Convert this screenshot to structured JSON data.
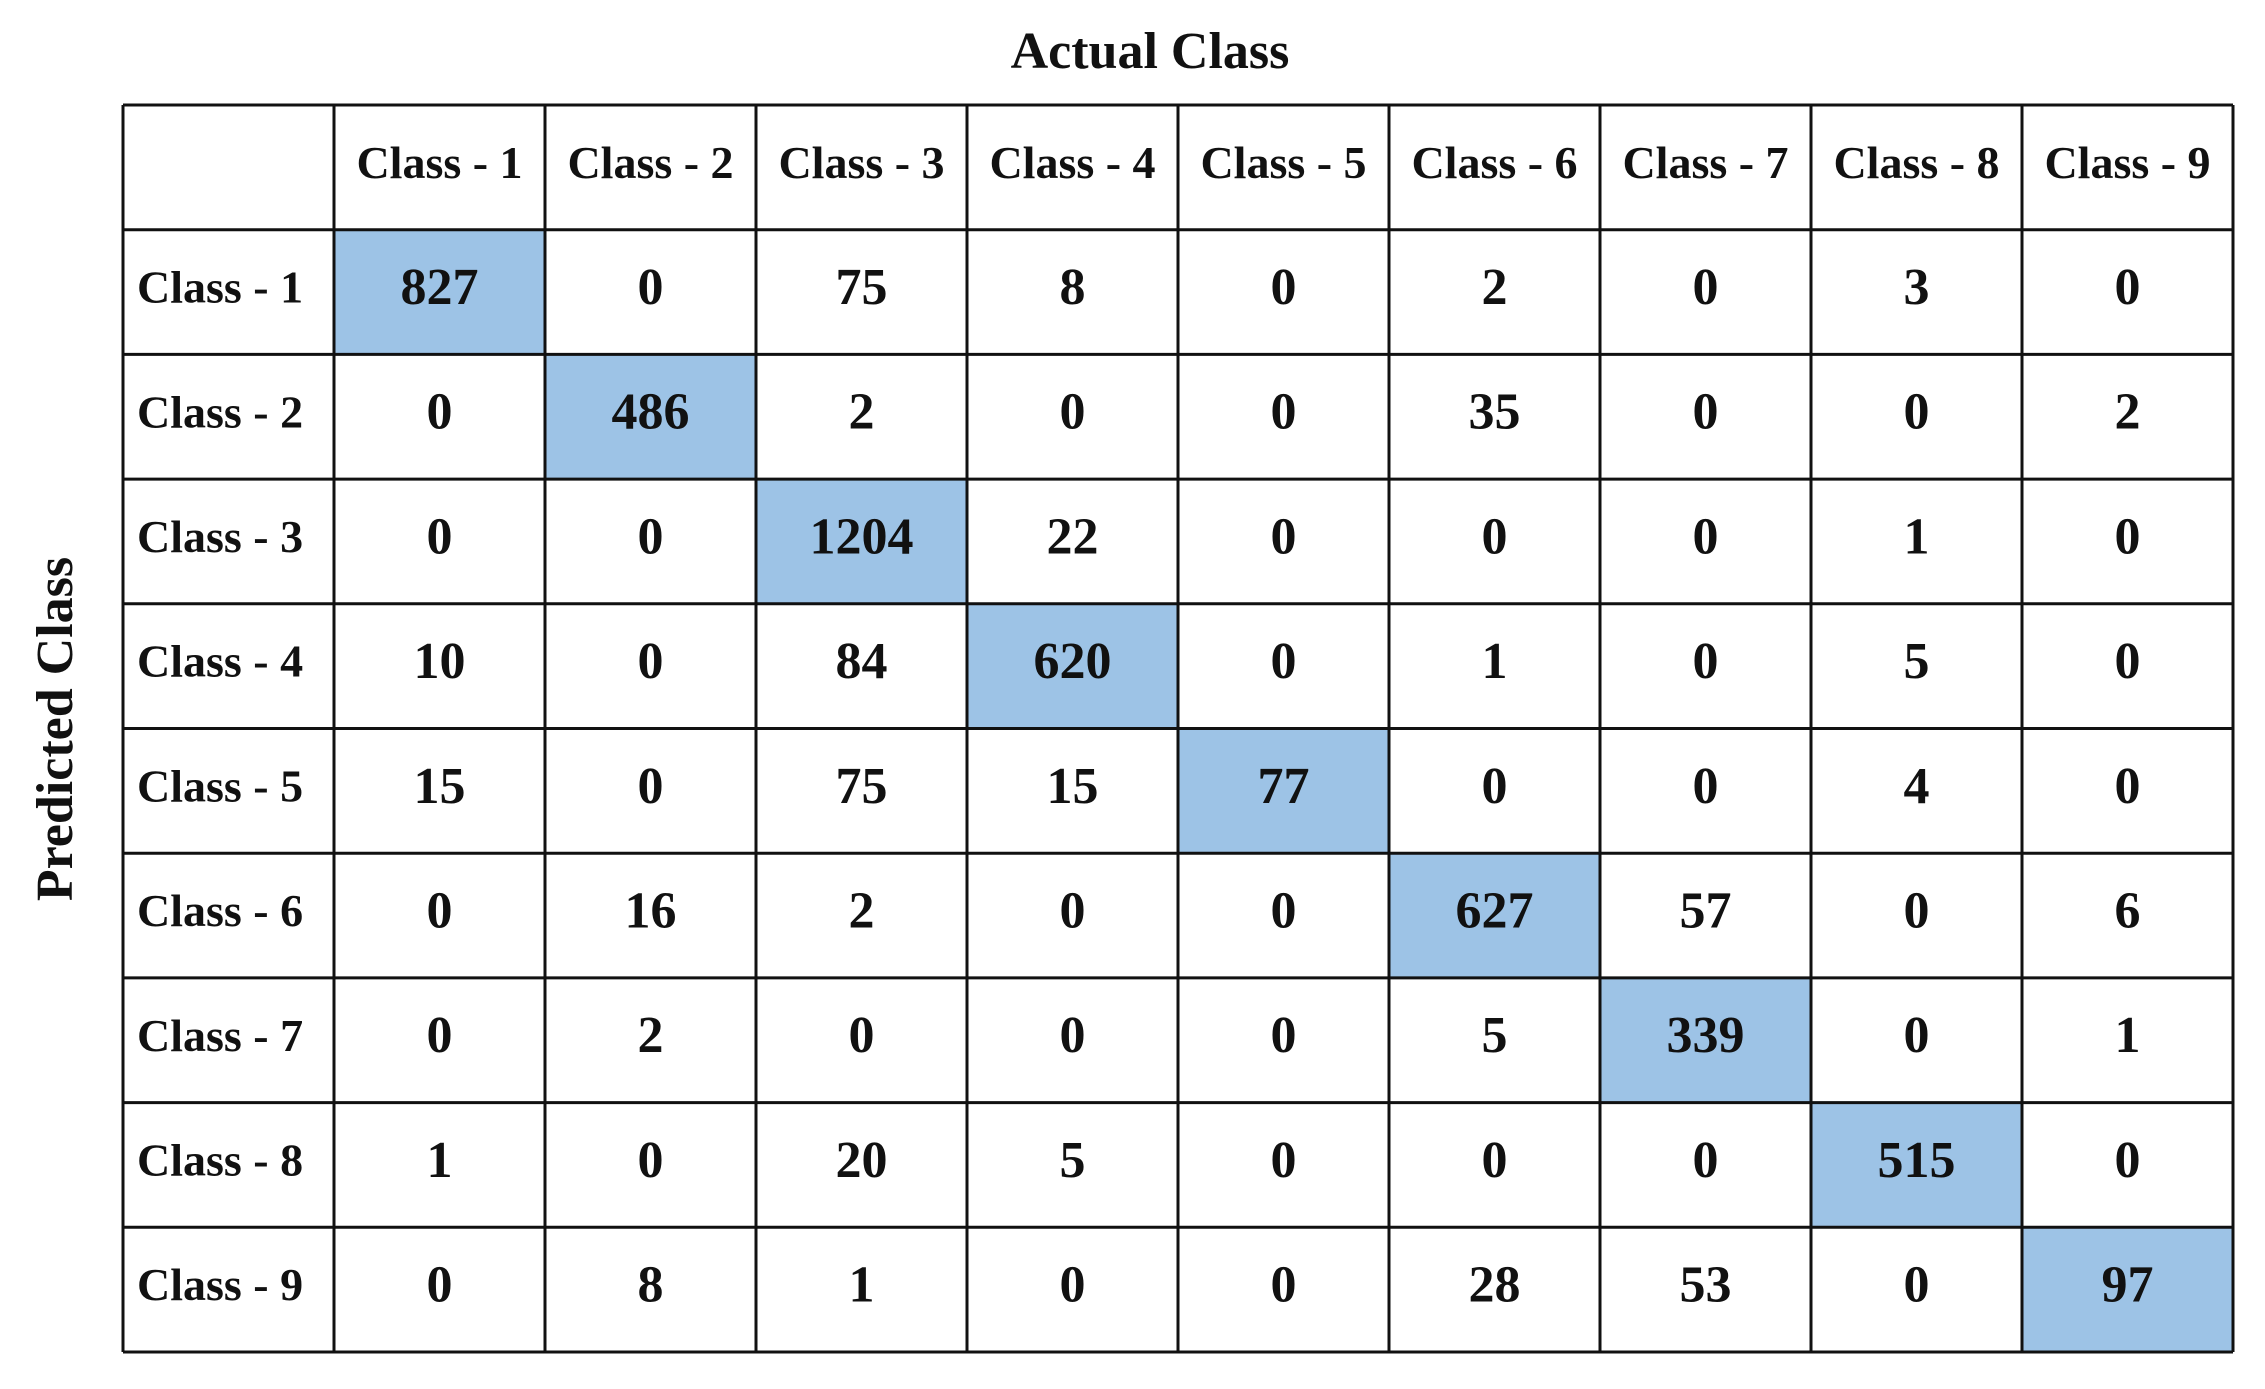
{
  "title_top": "Actual Class",
  "title_side": "Predicted Class",
  "table": {
    "header": [
      "Class - 1",
      "Class - 2",
      "Class - 3",
      "Class - 4",
      "Class - 5",
      "Class - 6",
      "Class - 7",
      "Class - 8",
      "Class - 9"
    ],
    "rows": [
      [
        "Class - 1",
        827,
        0,
        75,
        8,
        0,
        2,
        0,
        3,
        0
      ],
      [
        "Class - 2",
        0,
        486,
        2,
        0,
        0,
        35,
        0,
        0,
        2
      ],
      [
        "Class - 3",
        0,
        0,
        1204,
        22,
        0,
        0,
        0,
        1,
        0
      ],
      [
        "Class - 4",
        10,
        0,
        84,
        620,
        0,
        1,
        0,
        5,
        0
      ],
      [
        "Class - 5",
        15,
        0,
        75,
        15,
        77,
        0,
        0,
        4,
        0
      ],
      [
        "Class - 6",
        0,
        16,
        2,
        0,
        0,
        627,
        57,
        0,
        6
      ],
      [
        "Class - 7",
        0,
        2,
        0,
        0,
        0,
        5,
        339,
        0,
        1
      ],
      [
        "Class - 8",
        1,
        0,
        20,
        5,
        0,
        0,
        0,
        515,
        0
      ],
      [
        "Class - 9",
        0,
        8,
        1,
        0,
        0,
        28,
        53,
        0,
        97
      ]
    ]
  }
}
